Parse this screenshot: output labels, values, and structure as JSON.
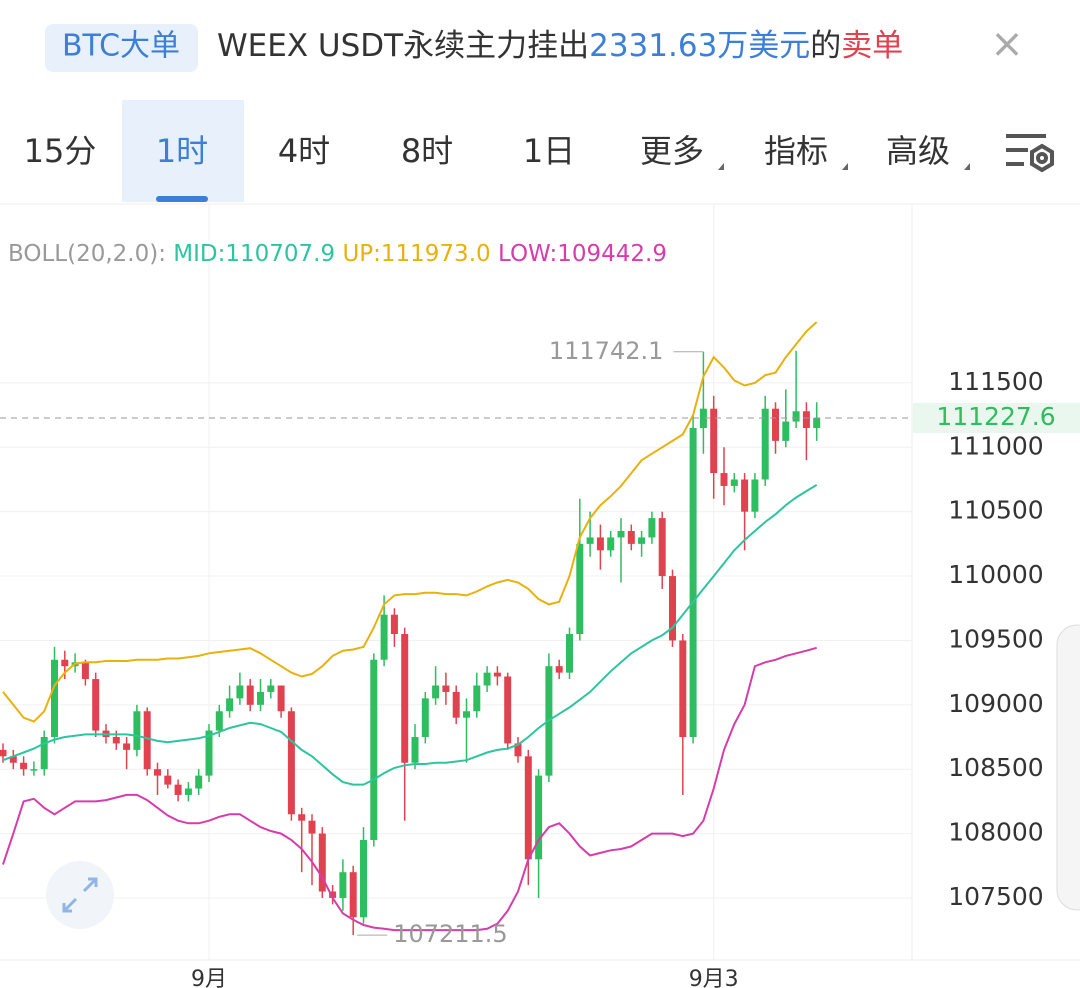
{
  "header": {
    "badge": "BTC大单",
    "parts": [
      "WEEX USDT永续主力挂出",
      "2331.63万美元",
      "的",
      "卖单"
    ],
    "close": "×"
  },
  "tabs": [
    "15分",
    "1时",
    "4时",
    "8时",
    "1日",
    "更多",
    "指标",
    "高级"
  ],
  "selected_tab": 1,
  "chart_data": {
    "type": "candlestick",
    "indicator": "BOLL(20,2.0):",
    "categories": [
      null,
      null,
      null,
      null,
      null,
      null,
      null,
      null,
      null,
      null,
      null,
      null,
      null,
      null,
      null,
      null,
      null,
      null,
      null,
      null,
      "9月",
      null,
      null,
      null,
      null,
      null,
      null,
      null,
      null,
      null,
      null,
      null,
      null,
      null,
      null,
      null,
      null,
      null,
      null,
      null,
      null,
      null,
      null,
      null,
      null,
      null,
      null,
      null,
      null,
      null,
      null,
      null,
      null,
      null,
      null,
      null,
      null,
      null,
      null,
      null,
      null,
      null,
      null,
      null,
      null,
      null,
      null,
      null,
      null,
      "9月3",
      null,
      null,
      null,
      null,
      null,
      null,
      null,
      null,
      null,
      null
    ],
    "open": [
      108650,
      108600,
      108550,
      108500,
      108500,
      108750,
      109350,
      109300,
      109330,
      109200,
      108800,
      108750,
      108700,
      108650,
      108950,
      108500,
      108450,
      108380,
      108300,
      108350,
      108450,
      108800,
      108950,
      109050,
      109150,
      109000,
      109100,
      109150,
      108950,
      108150,
      108100,
      108000,
      107550,
      107500,
      107700,
      107350,
      107950,
      109350,
      109700,
      109550,
      108550,
      108750,
      109050,
      109150,
      109100,
      108900,
      108950,
      109150,
      109250,
      109220,
      108700,
      108600,
      107800,
      108450,
      109300,
      109250,
      109550,
      110250,
      110300,
      110200,
      110300,
      110350,
      110250,
      110300,
      110450,
      110000,
      109500,
      108750,
      111150,
      111300,
      110800,
      110700,
      110750,
      110500,
      110750,
      111300,
      111050,
      111200,
      111280,
      111150
    ],
    "high": [
      108700,
      108650,
      108600,
      108560,
      108800,
      109450,
      109420,
      109400,
      109350,
      109250,
      108850,
      108800,
      108750,
      109000,
      108980,
      108550,
      108500,
      108420,
      108400,
      108500,
      108850,
      109000,
      109150,
      109250,
      109200,
      109200,
      109200,
      109150,
      108980,
      108200,
      108150,
      108050,
      107600,
      107800,
      107750,
      108050,
      109400,
      109850,
      109750,
      109600,
      108850,
      109100,
      109300,
      109250,
      109150,
      109050,
      109250,
      109300,
      109300,
      109250,
      108750,
      108650,
      108500,
      109400,
      109350,
      109600,
      110600,
      110500,
      110400,
      110350,
      110450,
      110400,
      110350,
      110500,
      110500,
      110050,
      109550,
      111250,
      111742.1,
      111400,
      111000,
      110800,
      110800,
      110800,
      111400,
      111350,
      111450,
      111750,
      111350,
      111350
    ],
    "low": [
      108550,
      108500,
      108450,
      108450,
      108450,
      108700,
      109200,
      109250,
      109150,
      108750,
      108700,
      108650,
      108500,
      108600,
      108450,
      108300,
      108350,
      108250,
      108250,
      108300,
      108400,
      108750,
      108900,
      109000,
      108950,
      108950,
      109050,
      108900,
      108100,
      107700,
      107600,
      107500,
      107450,
      107400,
      107211.5,
      107300,
      107900,
      109300,
      109450,
      108100,
      108500,
      108700,
      109000,
      109000,
      108850,
      108550,
      108900,
      109100,
      109150,
      108650,
      108550,
      107600,
      107500,
      108400,
      109200,
      109200,
      109500,
      110150,
      110050,
      110150,
      109950,
      110200,
      110150,
      110250,
      109900,
      109450,
      108300,
      108700,
      110950,
      110600,
      110550,
      110650,
      110200,
      110450,
      110700,
      110950,
      111000,
      111150,
      110900,
      111050
    ],
    "close": [
      108600,
      108550,
      108500,
      108500,
      108750,
      109350,
      109300,
      109330,
      109200,
      108800,
      108750,
      108700,
      108650,
      108950,
      108500,
      108450,
      108380,
      108300,
      108350,
      108450,
      108800,
      108950,
      109050,
      109150,
      109000,
      109100,
      109150,
      108950,
      108150,
      108100,
      108000,
      107550,
      107500,
      107700,
      107350,
      107950,
      109350,
      109700,
      109550,
      108550,
      108750,
      109050,
      109150,
      109100,
      108900,
      108950,
      109150,
      109250,
      109220,
      108700,
      108600,
      107800,
      108450,
      109300,
      109250,
      109550,
      110250,
      110300,
      110200,
      110300,
      110350,
      110250,
      110300,
      110450,
      110000,
      109500,
      108750,
      111150,
      111300,
      110800,
      110700,
      110750,
      110500,
      110750,
      111300,
      111050,
      111200,
      111280,
      111150,
      111227.6
    ],
    "up_color": "#2ebd5f",
    "down_color": "#e0434f",
    "series": [
      {
        "name": "MID:",
        "color": "#2ec4a0",
        "last_label": "110707.9",
        "values": [
          108570,
          108600,
          108630,
          108660,
          108700,
          108730,
          108750,
          108760,
          108770,
          108770,
          108770,
          108770,
          108770,
          108760,
          108740,
          108720,
          108710,
          108720,
          108730,
          108740,
          108760,
          108790,
          108820,
          108840,
          108860,
          108850,
          108820,
          108790,
          108720,
          108650,
          108600,
          108530,
          108460,
          108400,
          108380,
          108380,
          108420,
          108470,
          108510,
          108530,
          108540,
          108540,
          108550,
          108550,
          108560,
          108570,
          108600,
          108630,
          108650,
          108660,
          108690,
          108750,
          108820,
          108880,
          108930,
          108980,
          109040,
          109100,
          109180,
          109260,
          109330,
          109400,
          109450,
          109500,
          109540,
          109600,
          109700,
          109800,
          109900,
          110000,
          110100,
          110200,
          110280,
          110350,
          110420,
          110480,
          110550,
          110610,
          110660,
          110707.9
        ]
      },
      {
        "name": "UP:",
        "color": "#e8b10e",
        "last_label": "111973.0",
        "values": [
          109100,
          109000,
          108900,
          108870,
          108950,
          109150,
          109250,
          109320,
          109330,
          109330,
          109340,
          109340,
          109340,
          109350,
          109350,
          109350,
          109360,
          109360,
          109370,
          109380,
          109400,
          109410,
          109420,
          109430,
          109440,
          109400,
          109350,
          109300,
          109250,
          109220,
          109240,
          109300,
          109380,
          109420,
          109430,
          109450,
          109600,
          109780,
          109850,
          109860,
          109860,
          109870,
          109870,
          109860,
          109860,
          109850,
          109880,
          109920,
          109950,
          109970,
          109950,
          109900,
          109820,
          109780,
          109800,
          110000,
          110300,
          110450,
          110550,
          110620,
          110700,
          110800,
          110900,
          110950,
          111000,
          111050,
          111100,
          111250,
          111550,
          111700,
          111620,
          111520,
          111480,
          111500,
          111560,
          111580,
          111700,
          111800,
          111900,
          111973
        ]
      },
      {
        "name": "LOW:",
        "color": "#d63cac",
        "last_label": "109442.9",
        "values": [
          107760,
          108000,
          108250,
          108270,
          108200,
          108150,
          108200,
          108250,
          108250,
          108250,
          108260,
          108280,
          108300,
          108300,
          108260,
          108200,
          108140,
          108100,
          108080,
          108080,
          108100,
          108130,
          108150,
          108150,
          108100,
          108050,
          108020,
          108000,
          107950,
          107880,
          107780,
          107660,
          107500,
          107380,
          107330,
          107290,
          107270,
          107260,
          107250,
          107250,
          107250,
          107250,
          107250,
          107250,
          107250,
          107250,
          107250,
          107260,
          107300,
          107400,
          107550,
          107800,
          107950,
          108050,
          108080,
          108000,
          107900,
          107830,
          107850,
          107870,
          107880,
          107900,
          107950,
          108000,
          108000,
          108000,
          107980,
          108000,
          108100,
          108350,
          108650,
          108850,
          109000,
          109300,
          109330,
          109350,
          109380,
          109400,
          109420,
          109442.9
        ]
      }
    ],
    "last_price": 111227.6,
    "ylim": [
      107018,
      112882
    ],
    "yticks": [
      107500,
      108000,
      108500,
      109000,
      109500,
      110000,
      110500,
      111000,
      111500
    ],
    "grid": true,
    "annotations": [
      {
        "index": 68,
        "field": "high"
      },
      {
        "index": 34,
        "field": "low"
      }
    ]
  }
}
